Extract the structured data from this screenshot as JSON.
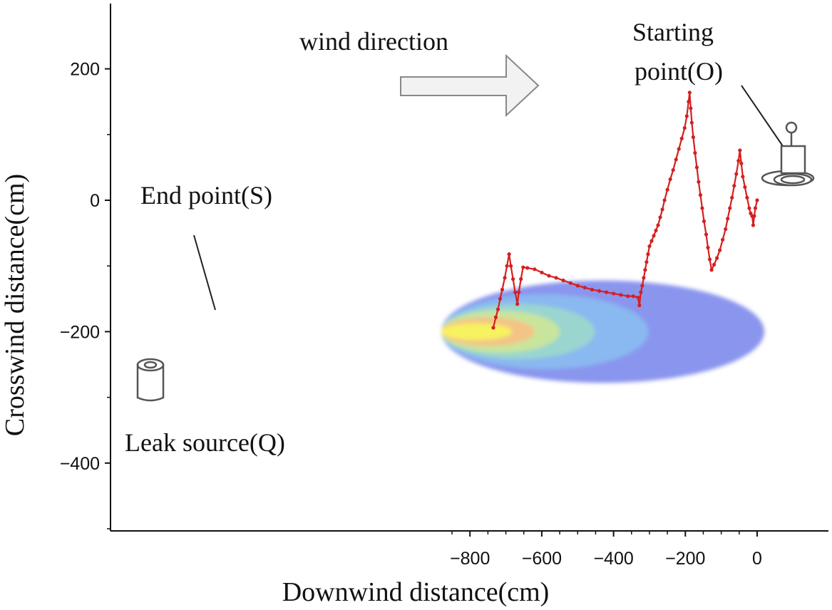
{
  "chart_data": {
    "type": "line",
    "title": "",
    "xlabel": "Downwind distance(cm)",
    "ylabel": "Crosswind distance(cm)",
    "xlim": [
      -900,
      10
    ],
    "ylim": [
      -500,
      300
    ],
    "x_ticks": [
      -800,
      -600,
      -400,
      -200,
      0
    ],
    "x_tick_labels": [
      "−800",
      "−600",
      "−400",
      "−200",
      "0"
    ],
    "y_ticks": [
      200,
      0,
      -200,
      -400
    ],
    "y_tick_labels": [
      "200",
      "0",
      "−200",
      "−400"
    ],
    "grid": false,
    "series": [
      {
        "color": "#d42020",
        "points": [
          [
            0,
            0
          ],
          [
            -5,
            -12
          ],
          [
            -8,
            -24
          ],
          [
            -11,
            -38
          ],
          [
            -14,
            -24
          ],
          [
            -18,
            -20
          ],
          [
            -22,
            -12
          ],
          [
            -28,
            4
          ],
          [
            -34,
            20
          ],
          [
            -40,
            36
          ],
          [
            -44,
            56
          ],
          [
            -48,
            76
          ],
          [
            -52,
            60
          ],
          [
            -58,
            40
          ],
          [
            -64,
            22
          ],
          [
            -70,
            4
          ],
          [
            -76,
            -12
          ],
          [
            -82,
            -28
          ],
          [
            -88,
            -44
          ],
          [
            -96,
            -60
          ],
          [
            -104,
            -76
          ],
          [
            -112,
            -88
          ],
          [
            -120,
            -98
          ],
          [
            -127,
            -106
          ],
          [
            -132,
            -90
          ],
          [
            -137,
            -72
          ],
          [
            -142,
            -52
          ],
          [
            -148,
            -32
          ],
          [
            -153,
            -12
          ],
          [
            -158,
            8
          ],
          [
            -163,
            28
          ],
          [
            -168,
            50
          ],
          [
            -173,
            72
          ],
          [
            -178,
            96
          ],
          [
            -182,
            118
          ],
          [
            -185,
            140
          ],
          [
            -188,
            164
          ],
          [
            -191,
            150
          ],
          [
            -196,
            128
          ],
          [
            -202,
            110
          ],
          [
            -210,
            94
          ],
          [
            -218,
            78
          ],
          [
            -226,
            62
          ],
          [
            -234,
            46
          ],
          [
            -242,
            32
          ],
          [
            -250,
            16
          ],
          [
            -258,
            0
          ],
          [
            -264,
            -14
          ],
          [
            -270,
            -26
          ],
          [
            -276,
            -38
          ],
          [
            -282,
            -46
          ],
          [
            -288,
            -54
          ],
          [
            -294,
            -62
          ],
          [
            -300,
            -70
          ],
          [
            -304,
            -82
          ],
          [
            -308,
            -94
          ],
          [
            -312,
            -106
          ],
          [
            -316,
            -118
          ],
          [
            -320,
            -130
          ],
          [
            -324,
            -140
          ],
          [
            -328,
            -160
          ],
          [
            -332,
            -148
          ],
          [
            -345,
            -146
          ],
          [
            -360,
            -146
          ],
          [
            -380,
            -144
          ],
          [
            -400,
            -142
          ],
          [
            -420,
            -140
          ],
          [
            -440,
            -138
          ],
          [
            -460,
            -136
          ],
          [
            -480,
            -133
          ],
          [
            -500,
            -130
          ],
          [
            -520,
            -126
          ],
          [
            -540,
            -122
          ],
          [
            -560,
            -118
          ],
          [
            -580,
            -115
          ],
          [
            -600,
            -110
          ],
          [
            -620,
            -105
          ],
          [
            -640,
            -103
          ],
          [
            -652,
            -102
          ],
          [
            -658,
            -120
          ],
          [
            -664,
            -140
          ],
          [
            -668,
            -158
          ],
          [
            -674,
            -140
          ],
          [
            -680,
            -120
          ],
          [
            -686,
            -100
          ],
          [
            -691,
            -82
          ],
          [
            -697,
            -100
          ],
          [
            -703,
            -118
          ],
          [
            -710,
            -136
          ],
          [
            -716,
            -150
          ],
          [
            -722,
            -166
          ],
          [
            -728,
            -178
          ],
          [
            -735,
            -194
          ]
        ]
      }
    ],
    "plume": {
      "source": [
        -880,
        -200
      ],
      "layers": [
        {
          "x_end": 20,
          "half_width": 78,
          "color": "#8a95ee"
        },
        {
          "x_end": -303,
          "half_width": 57,
          "color": "#8ab8f0"
        },
        {
          "x_end": -452,
          "half_width": 42,
          "color": "#9ad6cf"
        },
        {
          "x_end": -550,
          "half_width": 32,
          "color": "#c9e59c"
        },
        {
          "x_end": -620,
          "half_width": 22,
          "color": "#f3c486"
        },
        {
          "x_end": -683,
          "half_width": 13,
          "color": "#f7f25e"
        }
      ]
    },
    "annotations": {
      "wind": "wind direction",
      "start_line1": "Starting",
      "start_line2": "point(O)",
      "end": "End point(S)",
      "leak": "Leak source(Q)"
    },
    "colors": {
      "trajectory": "#d42020",
      "arrow_fill": "#f2f2f2",
      "arrow_stroke": "#888888",
      "axis": "#111111"
    },
    "icons": [
      "wind-arrow",
      "sensor-station-icon",
      "leak-source-icon"
    ]
  }
}
